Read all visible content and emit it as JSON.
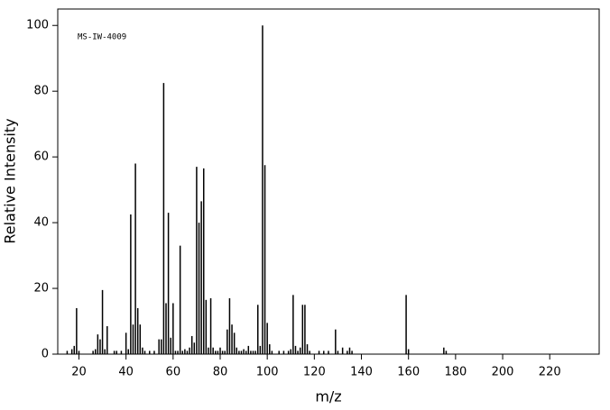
{
  "chart_data": {
    "type": "bar",
    "annotation": "MS-IW-4009",
    "x_label": "m/z",
    "y_label": "Relative Intensity",
    "color": "#000000",
    "x": [
      15,
      17,
      18,
      19,
      20,
      26,
      27,
      28,
      29,
      30,
      31,
      32,
      35,
      36,
      38,
      40,
      41,
      42,
      43,
      44,
      45,
      46,
      47,
      48,
      50,
      52,
      54,
      55,
      56,
      57,
      58,
      59,
      60,
      61,
      62,
      63,
      64,
      65,
      66,
      67,
      68,
      69,
      70,
      71,
      72,
      73,
      74,
      75,
      76,
      77,
      78,
      79,
      80,
      81,
      82,
      83,
      84,
      85,
      86,
      87,
      88,
      89,
      90,
      91,
      92,
      93,
      94,
      95,
      96,
      97,
      98,
      99,
      100,
      101,
      102,
      105,
      107,
      109,
      110,
      111,
      112,
      113,
      114,
      115,
      116,
      117,
      118,
      122,
      124,
      126,
      129,
      130,
      132,
      134,
      135,
      136,
      159,
      160,
      175,
      176
    ],
    "values": [
      1,
      1.5,
      2.5,
      14,
      1,
      1,
      1.5,
      6,
      4.5,
      19.5,
      1.5,
      8.5,
      1,
      1,
      1,
      6.5,
      1.5,
      42.5,
      9,
      58,
      14,
      9,
      2,
      1,
      1,
      1,
      4.5,
      4.5,
      82.5,
      15.5,
      43,
      5,
      15.5,
      1,
      1,
      33,
      1,
      1.5,
      1,
      2,
      5.5,
      3.5,
      57,
      40,
      46.5,
      56.5,
      16.5,
      2,
      17,
      2,
      1,
      1,
      2,
      1,
      1,
      7.5,
      17,
      9,
      6.5,
      2,
      1,
      1,
      1.5,
      1,
      2.5,
      1,
      1,
      1,
      15,
      2.5,
      100,
      57.5,
      9.5,
      3,
      1,
      1,
      1,
      1,
      1.5,
      18,
      2.5,
      1,
      2,
      15,
      15,
      3,
      1,
      1,
      1,
      1,
      7.5,
      1,
      2,
      1,
      2,
      1,
      18,
      1.5,
      2,
      1
    ],
    "xlim": [
      11,
      241
    ],
    "ylim": [
      0,
      105
    ],
    "xticks": [
      20,
      40,
      60,
      80,
      100,
      120,
      140,
      160,
      180,
      200,
      220
    ],
    "yticks": [
      0,
      20,
      40,
      60,
      80,
      100
    ]
  }
}
